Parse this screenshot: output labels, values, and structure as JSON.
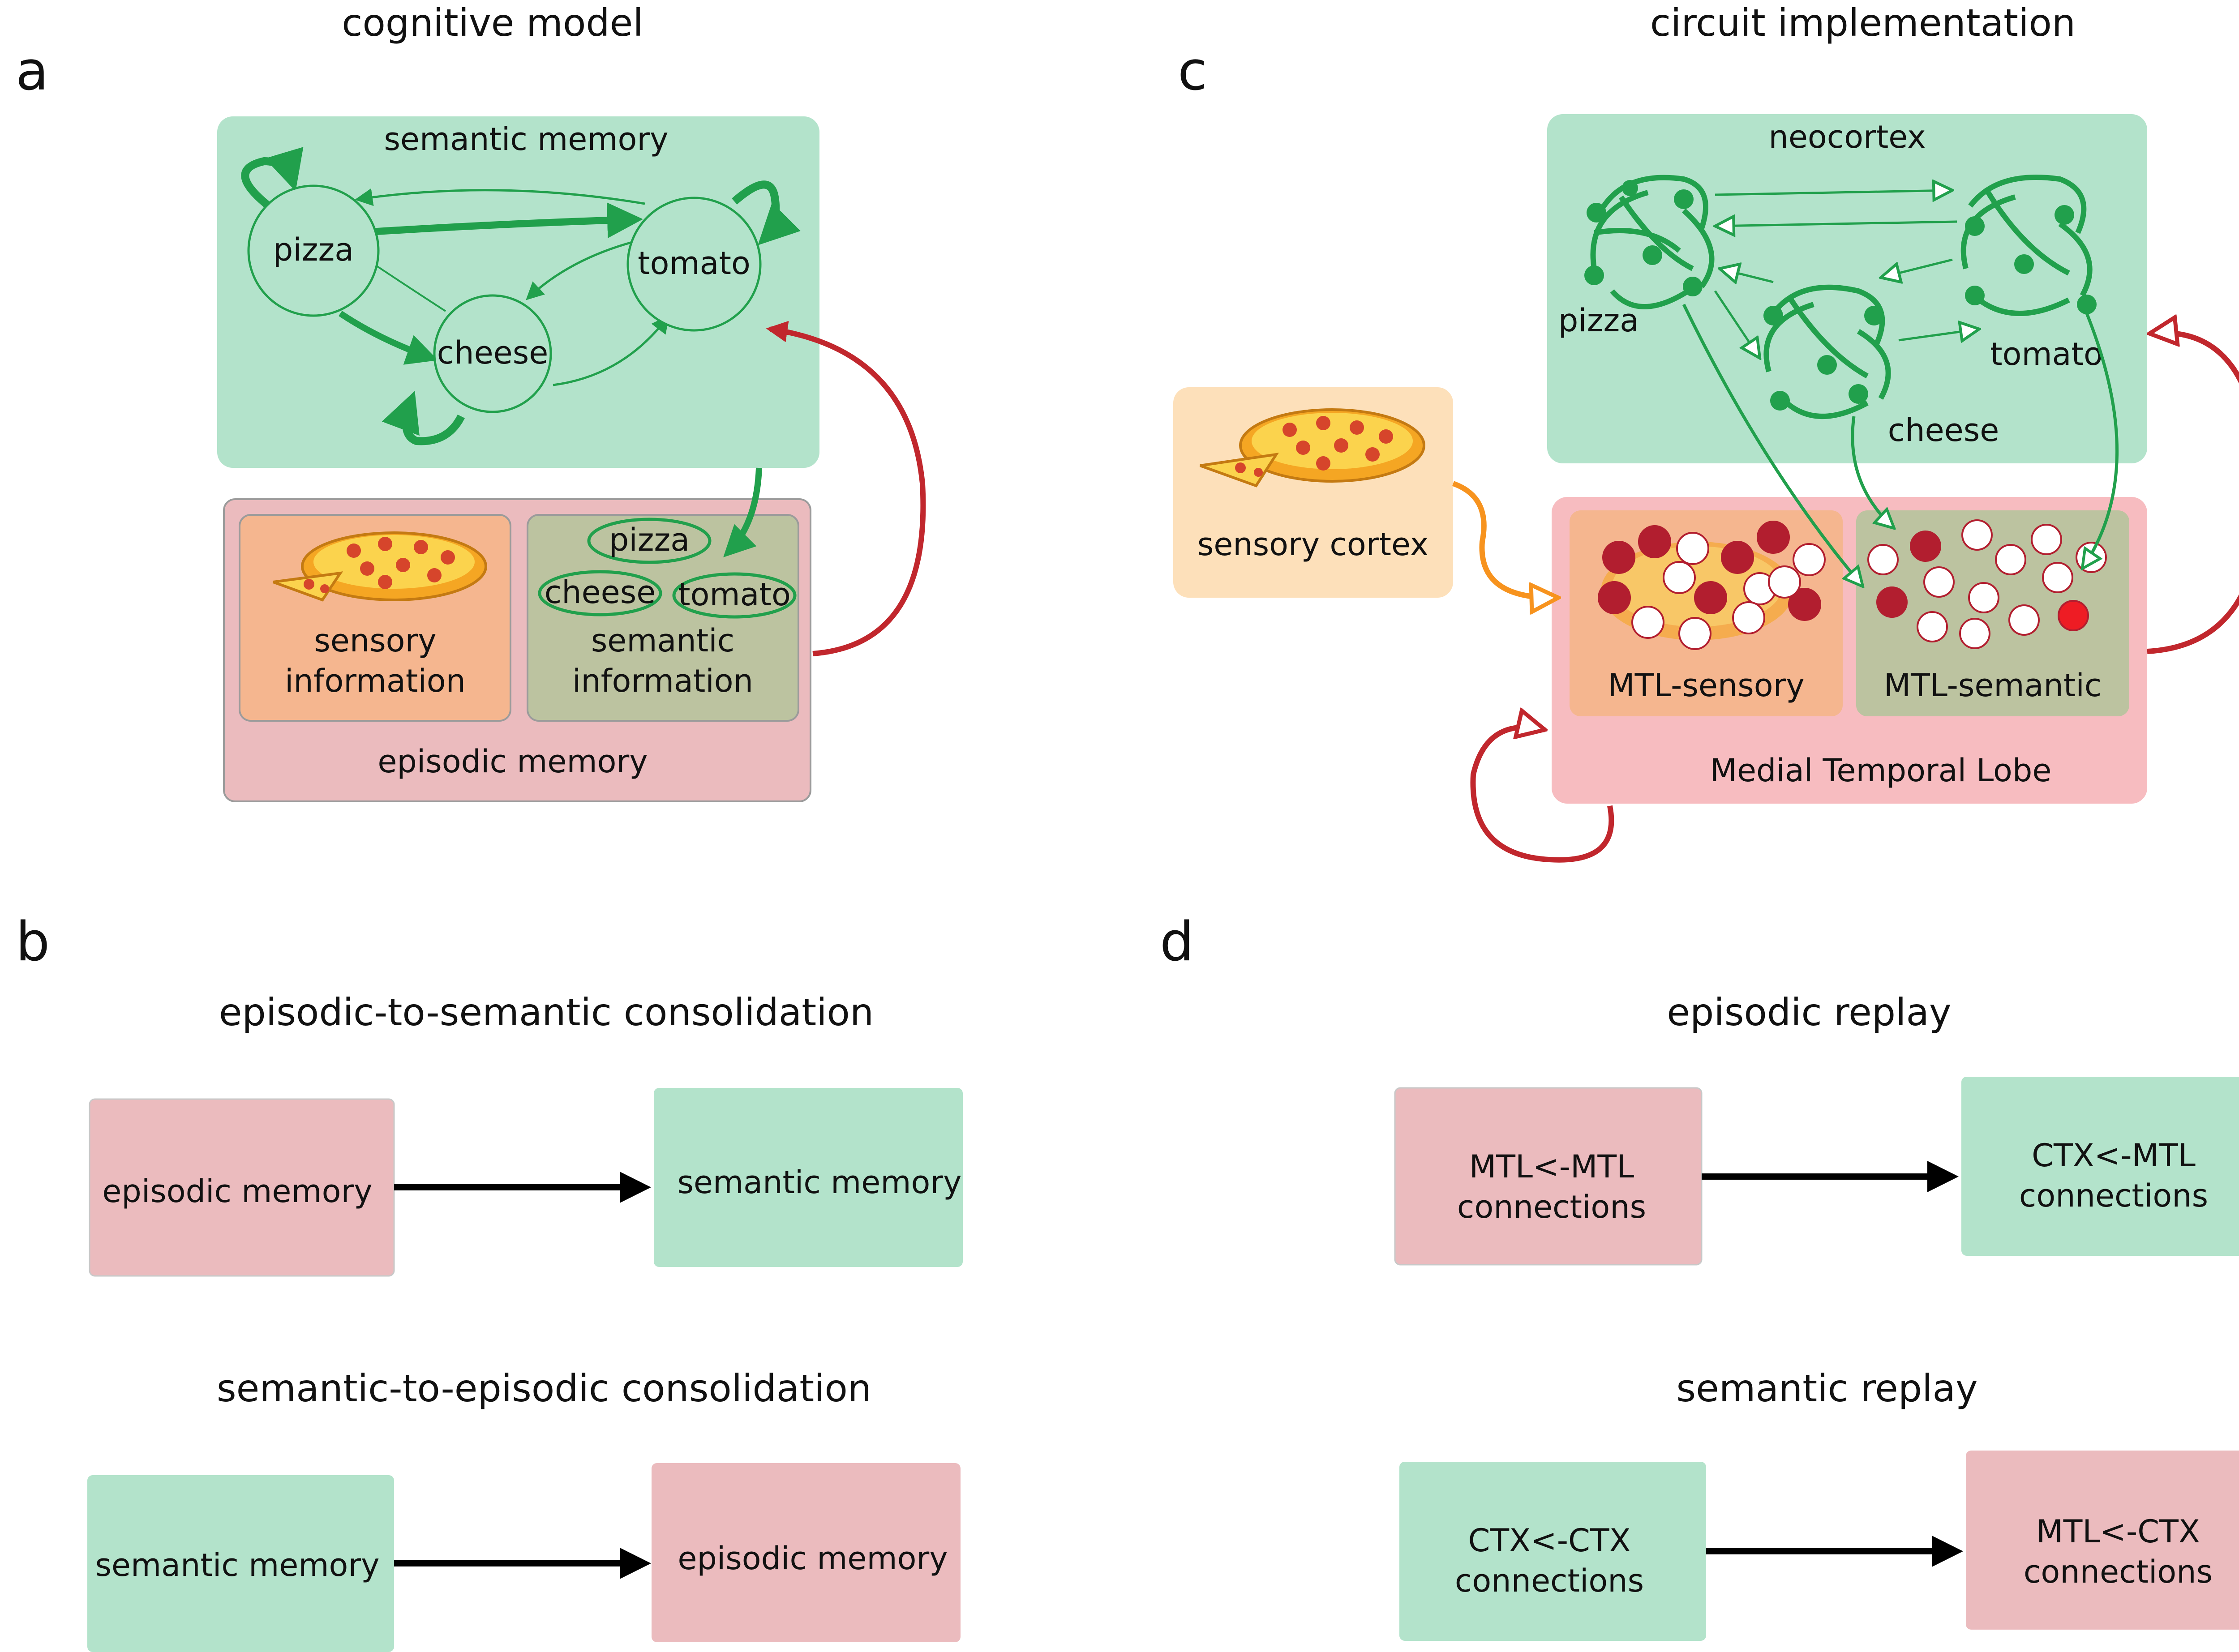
{
  "colors": {
    "semantic_green": "#b3e3cb",
    "episodic_pink": "#ebbbbe",
    "mtl_pink": "#f7bcc0",
    "sensory_orange": "#f5b68f",
    "semantic_info_olive": "#bcc3a0",
    "sensory_cortex_peach": "#fde0ba",
    "arrow_green": "#21a04c",
    "arrow_red": "#c1272d",
    "arrow_orange": "#f7931e",
    "neuron_dark_red": "#b21e2f",
    "neuron_bright_red": "#ee1c24",
    "black": "#000000"
  },
  "panel_a": {
    "letter": "a",
    "title": "cognitive model",
    "semantic_box_label": "semantic memory",
    "nodes": {
      "pizza": "pizza",
      "cheese": "cheese",
      "tomato": "tomato"
    },
    "episodic_box_label": "episodic memory",
    "sensory_info_line1": "sensory",
    "sensory_info_line2": "information",
    "semantic_info_line1": "semantic",
    "semantic_info_line2": "information",
    "chips": {
      "pizza": "pizza",
      "cheese": "cheese",
      "tomato": "tomato"
    }
  },
  "panel_b": {
    "letter": "b",
    "row1_title": "episodic-to-semantic consolidation",
    "row1_left": "episodic memory",
    "row1_right": "semantic memory",
    "row2_title": "semantic-to-episodic consolidation",
    "row2_left": "semantic memory",
    "row2_right": "episodic memory"
  },
  "panel_c": {
    "letter": "c",
    "title": "circuit implementation",
    "neocortex_label": "neocortex",
    "assemblies": {
      "pizza": "pizza",
      "cheese": "cheese",
      "tomato": "tomato"
    },
    "sensory_cortex_label": "sensory cortex",
    "mtl_sensory_label": "MTL-sensory",
    "mtl_semantic_label": "MTL-semantic",
    "mtl_label": "Medial Temporal Lobe"
  },
  "panel_d": {
    "letter": "d",
    "row1_title": "episodic replay",
    "row1_left_line1": "MTL<-MTL",
    "row1_left_line2": "connections",
    "row1_right_line1": "CTX<-MTL",
    "row1_right_line2": "connections",
    "row2_title": "semantic replay",
    "row2_left_line1": "CTX<-CTX",
    "row2_left_line2": "connections",
    "row2_right_line1": "MTL<-CTX",
    "row2_right_line2": "connections"
  }
}
